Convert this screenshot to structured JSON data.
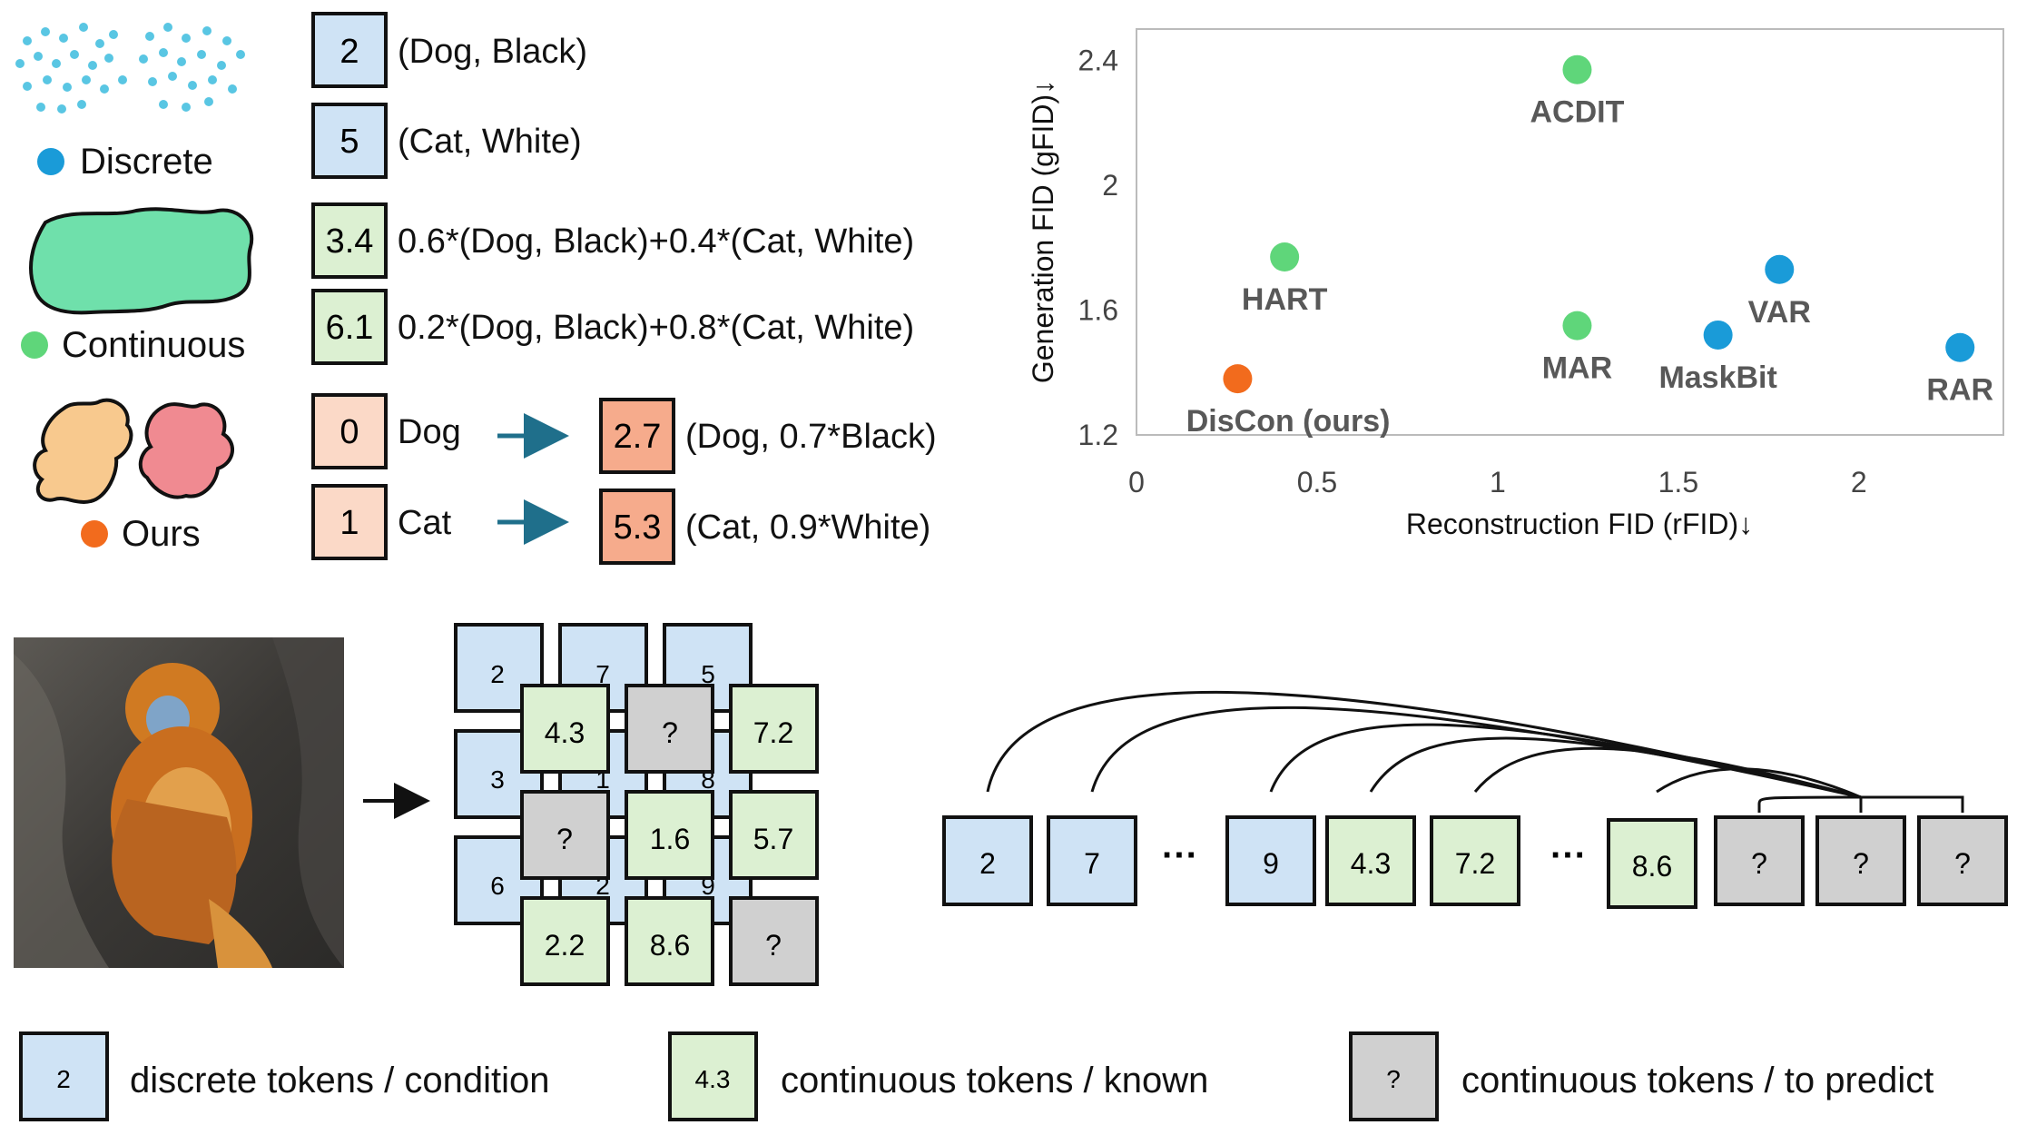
{
  "legend_types": {
    "discrete": "Discrete",
    "continuous": "Continuous",
    "ours": "Ours"
  },
  "token_examples": {
    "discrete": [
      {
        "value": "2",
        "text": "(Dog, Black)"
      },
      {
        "value": "5",
        "text": "(Cat, White)"
      }
    ],
    "continuous": [
      {
        "value": "3.4",
        "text": "0.6*(Dog, Black)+0.4*(Cat, White)"
      },
      {
        "value": "6.1",
        "text": "0.2*(Dog, Black)+0.8*(Cat, White)"
      }
    ],
    "ours": [
      {
        "value": "0",
        "text": "Dog",
        "out_value": "2.7",
        "out_text": "(Dog, 0.7*Black)"
      },
      {
        "value": "1",
        "text": "Cat",
        "out_value": "5.3",
        "out_text": "(Cat, 0.9*White)"
      }
    ]
  },
  "chart_data": {
    "type": "scatter",
    "xlabel": "Reconstruction FID (rFID)↓",
    "ylabel": "Generation FID (gFID)↓",
    "xlim": [
      0,
      2.4
    ],
    "ylim": [
      1.2,
      2.5
    ],
    "xticks": [
      "0",
      "0.5",
      "1",
      "1.5",
      "2"
    ],
    "yticks": [
      "1.2",
      "1.6",
      "2",
      "2.4"
    ],
    "colors": {
      "discrete": "#1a9bd8",
      "continuous": "#5fd67a",
      "ours": "#f26b1d"
    },
    "points": [
      {
        "name": "ACDIT",
        "x": 1.22,
        "y": 2.37,
        "kind": "continuous"
      },
      {
        "name": "HART",
        "x": 0.41,
        "y": 1.77,
        "kind": "continuous"
      },
      {
        "name": "MAR",
        "x": 1.22,
        "y": 1.55,
        "kind": "continuous"
      },
      {
        "name": "VAR",
        "x": 1.78,
        "y": 1.73,
        "kind": "discrete"
      },
      {
        "name": "MaskBit",
        "x": 1.61,
        "y": 1.52,
        "kind": "discrete"
      },
      {
        "name": "RAR",
        "x": 2.28,
        "y": 1.48,
        "kind": "discrete"
      },
      {
        "name": "DisCon (ours)",
        "x": 0.28,
        "y": 1.38,
        "kind": "ours"
      }
    ]
  },
  "grid": {
    "discrete": [
      "2",
      "7",
      "5",
      "3",
      "1",
      "8",
      "6",
      "2",
      "9"
    ],
    "continuous": [
      "4.3",
      "?",
      "7.2",
      "?",
      "1.6",
      "5.7",
      "2.2",
      "8.6",
      "?"
    ]
  },
  "sequence": [
    "2",
    "7",
    "···",
    "9",
    "4.3",
    "7.2",
    "···",
    "8.6",
    "?",
    "?",
    "?"
  ],
  "bottom_legend": [
    {
      "value": "2",
      "text": "discrete tokens / condition"
    },
    {
      "value": "4.3",
      "text": "continuous tokens / known"
    },
    {
      "value": "?",
      "text": "continuous tokens / to predict"
    }
  ]
}
